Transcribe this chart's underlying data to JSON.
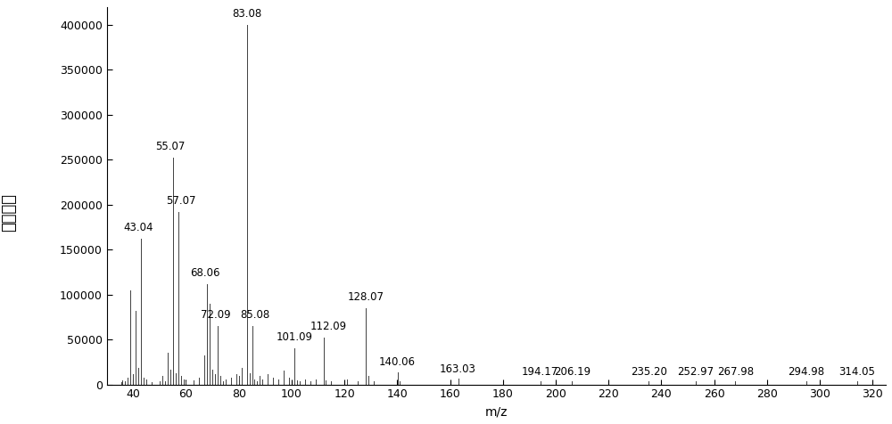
{
  "peaks": [
    {
      "mz": 35.5,
      "intensity": 3000,
      "label": null
    },
    {
      "mz": 36.0,
      "intensity": 5000,
      "label": null
    },
    {
      "mz": 37.0,
      "intensity": 4000,
      "label": null
    },
    {
      "mz": 38.0,
      "intensity": 8000,
      "label": null
    },
    {
      "mz": 39.0,
      "intensity": 105000,
      "label": null
    },
    {
      "mz": 40.0,
      "intensity": 12000,
      "label": null
    },
    {
      "mz": 41.0,
      "intensity": 82000,
      "label": null
    },
    {
      "mz": 42.0,
      "intensity": 18000,
      "label": null
    },
    {
      "mz": 43.04,
      "intensity": 162000,
      "label": "43.04"
    },
    {
      "mz": 44.0,
      "intensity": 8000,
      "label": null
    },
    {
      "mz": 45.0,
      "intensity": 6000,
      "label": null
    },
    {
      "mz": 47.0,
      "intensity": 3000,
      "label": null
    },
    {
      "mz": 50.0,
      "intensity": 4000,
      "label": null
    },
    {
      "mz": 51.0,
      "intensity": 10000,
      "label": null
    },
    {
      "mz": 52.0,
      "intensity": 4000,
      "label": null
    },
    {
      "mz": 53.0,
      "intensity": 35000,
      "label": null
    },
    {
      "mz": 54.0,
      "intensity": 16000,
      "label": null
    },
    {
      "mz": 55.07,
      "intensity": 252000,
      "label": "55.07"
    },
    {
      "mz": 56.0,
      "intensity": 13000,
      "label": null
    },
    {
      "mz": 57.07,
      "intensity": 192000,
      "label": "57.07"
    },
    {
      "mz": 58.0,
      "intensity": 10000,
      "label": null
    },
    {
      "mz": 59.0,
      "intensity": 6000,
      "label": null
    },
    {
      "mz": 60.0,
      "intensity": 4000,
      "label": null
    },
    {
      "mz": 63.0,
      "intensity": 5000,
      "label": null
    },
    {
      "mz": 65.0,
      "intensity": 8000,
      "label": null
    },
    {
      "mz": 67.0,
      "intensity": 32000,
      "label": null
    },
    {
      "mz": 68.06,
      "intensity": 112000,
      "label": "68.06"
    },
    {
      "mz": 69.0,
      "intensity": 90000,
      "label": null
    },
    {
      "mz": 70.0,
      "intensity": 16000,
      "label": null
    },
    {
      "mz": 71.0,
      "intensity": 12000,
      "label": null
    },
    {
      "mz": 72.09,
      "intensity": 65000,
      "label": "72.09"
    },
    {
      "mz": 73.0,
      "intensity": 10000,
      "label": null
    },
    {
      "mz": 74.0,
      "intensity": 4000,
      "label": null
    },
    {
      "mz": 75.0,
      "intensity": 6000,
      "label": null
    },
    {
      "mz": 77.0,
      "intensity": 8000,
      "label": null
    },
    {
      "mz": 79.0,
      "intensity": 12000,
      "label": null
    },
    {
      "mz": 80.0,
      "intensity": 10000,
      "label": null
    },
    {
      "mz": 81.0,
      "intensity": 18000,
      "label": null
    },
    {
      "mz": 83.08,
      "intensity": 400000,
      "label": "83.08"
    },
    {
      "mz": 84.0,
      "intensity": 13000,
      "label": null
    },
    {
      "mz": 85.08,
      "intensity": 65000,
      "label": "85.08"
    },
    {
      "mz": 86.0,
      "intensity": 6000,
      "label": null
    },
    {
      "mz": 87.0,
      "intensity": 4000,
      "label": null
    },
    {
      "mz": 88.0,
      "intensity": 10000,
      "label": null
    },
    {
      "mz": 89.0,
      "intensity": 6000,
      "label": null
    },
    {
      "mz": 91.0,
      "intensity": 12000,
      "label": null
    },
    {
      "mz": 93.0,
      "intensity": 8000,
      "label": null
    },
    {
      "mz": 95.0,
      "intensity": 6000,
      "label": null
    },
    {
      "mz": 97.0,
      "intensity": 15000,
      "label": null
    },
    {
      "mz": 99.0,
      "intensity": 8000,
      "label": null
    },
    {
      "mz": 101.09,
      "intensity": 40000,
      "label": "101.09"
    },
    {
      "mz": 102.0,
      "intensity": 5000,
      "label": null
    },
    {
      "mz": 103.0,
      "intensity": 4000,
      "label": null
    },
    {
      "mz": 105.0,
      "intensity": 6000,
      "label": null
    },
    {
      "mz": 107.0,
      "intensity": 4000,
      "label": null
    },
    {
      "mz": 109.0,
      "intensity": 6000,
      "label": null
    },
    {
      "mz": 112.09,
      "intensity": 52000,
      "label": "112.09"
    },
    {
      "mz": 113.0,
      "intensity": 5000,
      "label": null
    },
    {
      "mz": 115.0,
      "intensity": 4000,
      "label": null
    },
    {
      "mz": 121.0,
      "intensity": 6000,
      "label": null
    },
    {
      "mz": 125.0,
      "intensity": 4000,
      "label": null
    },
    {
      "mz": 128.07,
      "intensity": 85000,
      "label": "128.07"
    },
    {
      "mz": 129.0,
      "intensity": 10000,
      "label": null
    },
    {
      "mz": 131.0,
      "intensity": 4000,
      "label": null
    },
    {
      "mz": 140.06,
      "intensity": 14000,
      "label": "140.06"
    },
    {
      "mz": 141.0,
      "intensity": 4000,
      "label": null
    },
    {
      "mz": 163.03,
      "intensity": 7000,
      "label": "163.03"
    },
    {
      "mz": 194.17,
      "intensity": 4000,
      "label": "194.17"
    },
    {
      "mz": 206.19,
      "intensity": 4000,
      "label": "206.19"
    },
    {
      "mz": 235.2,
      "intensity": 4000,
      "label": "235.20"
    },
    {
      "mz": 252.97,
      "intensity": 4000,
      "label": "252.97"
    },
    {
      "mz": 267.98,
      "intensity": 4000,
      "label": "267.98"
    },
    {
      "mz": 294.98,
      "intensity": 4000,
      "label": "294.98"
    },
    {
      "mz": 314.05,
      "intensity": 4000,
      "label": "314.05"
    }
  ],
  "xlim": [
    30,
    325
  ],
  "ylim": [
    0,
    420000
  ],
  "xlabel": "m/z",
  "ylabel": "相对丰度",
  "yticks": [
    0,
    50000,
    100000,
    150000,
    200000,
    250000,
    300000,
    350000,
    400000
  ],
  "xticks": [
    40,
    60,
    80,
    100,
    120,
    140,
    160,
    180,
    200,
    220,
    240,
    260,
    280,
    300,
    320
  ],
  "background_color": "#ffffff",
  "line_color": "#404040",
  "label_fontsize": 8.5,
  "axis_fontsize": 10,
  "ylabel_fontsize": 13
}
